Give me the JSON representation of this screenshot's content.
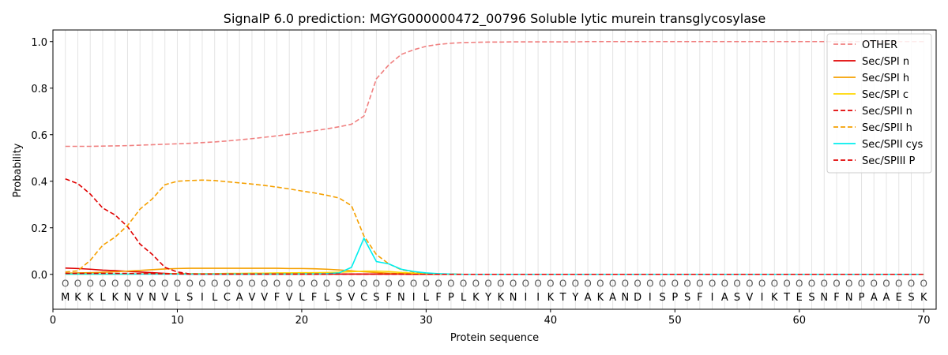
{
  "chart_data": {
    "type": "line",
    "title": "SignalP 6.0 prediction: MGYG000000472_00796 Soluble lytic murein transglycosylase",
    "xlabel": "Protein sequence",
    "ylabel": "Probability",
    "xlim": [
      0,
      71
    ],
    "ylim": [
      -0.15,
      1.05
    ],
    "xticks": [
      0,
      10,
      20,
      30,
      40,
      50,
      60,
      70
    ],
    "yticks": [
      0.0,
      0.2,
      0.4,
      0.6,
      0.8,
      1.0
    ],
    "ytick_labels": [
      "0.0",
      "0.2",
      "0.4",
      "0.6",
      "0.8",
      "1.0"
    ],
    "grid": "vertical lines at each residue",
    "legend_position": "top-right",
    "sequence": [
      "M",
      "K",
      "K",
      "L",
      "K",
      "N",
      "V",
      "N",
      "V",
      "L",
      "S",
      "I",
      "L",
      "C",
      "A",
      "V",
      "V",
      "F",
      "V",
      "L",
      "F",
      "L",
      "S",
      "V",
      "C",
      "S",
      "F",
      "N",
      "I",
      "L",
      "F",
      "P",
      "L",
      "K",
      "Y",
      "K",
      "N",
      "I",
      "I",
      "K",
      "T",
      "Y",
      "A",
      "K",
      "A",
      "N",
      "D",
      "I",
      "S",
      "P",
      "S",
      "F",
      "I",
      "A",
      "S",
      "V",
      "I",
      "K",
      "T",
      "E",
      "S",
      "N",
      "F",
      "N",
      "P",
      "A",
      "A",
      "E",
      "S",
      "K"
    ],
    "residue_state_label": "O",
    "x": [
      1,
      2,
      3,
      4,
      5,
      6,
      7,
      8,
      9,
      10,
      11,
      12,
      13,
      14,
      15,
      16,
      17,
      18,
      19,
      20,
      21,
      22,
      23,
      24,
      25,
      26,
      27,
      28,
      29,
      30,
      31,
      32,
      33,
      34,
      35,
      36,
      37,
      38,
      39,
      40,
      41,
      42,
      43,
      44,
      45,
      46,
      47,
      48,
      49,
      50,
      51,
      52,
      53,
      54,
      55,
      56,
      57,
      58,
      59,
      60,
      61,
      62,
      63,
      64,
      65,
      66,
      67,
      68,
      69,
      70
    ],
    "series": [
      {
        "name": "OTHER",
        "color": "#f08080",
        "dash": "dashed",
        "values": [
          0.55,
          0.55,
          0.55,
          0.551,
          0.552,
          0.553,
          0.555,
          0.557,
          0.559,
          0.561,
          0.563,
          0.566,
          0.569,
          0.573,
          0.578,
          0.583,
          0.589,
          0.595,
          0.602,
          0.609,
          0.617,
          0.625,
          0.634,
          0.645,
          0.68,
          0.84,
          0.9,
          0.945,
          0.965,
          0.98,
          0.988,
          0.993,
          0.996,
          0.997,
          0.998,
          0.998,
          0.999,
          0.999,
          0.999,
          0.999,
          0.999,
          0.999,
          1,
          1,
          1,
          1,
          1,
          1,
          1,
          1,
          1,
          1,
          1,
          1,
          1,
          1,
          1,
          1,
          1,
          1,
          1,
          1,
          1,
          1,
          1,
          1,
          1,
          1,
          1,
          1
        ]
      },
      {
        "name": "Sec/SPI n",
        "color": "#e00000",
        "dash": "solid",
        "values": [
          0.027,
          0.025,
          0.022,
          0.018,
          0.016,
          0.013,
          0.01,
          0.007,
          0.004,
          0.002,
          0.001,
          0.001,
          0.001,
          0.001,
          0.001,
          0.001,
          0.001,
          0.001,
          0.001,
          0.001,
          0.001,
          0.001,
          0.001,
          0.001,
          0.001,
          0.001,
          0.001,
          0.001,
          0,
          0,
          0,
          0,
          0,
          0,
          0,
          0,
          0,
          0,
          0,
          0,
          0,
          0,
          0,
          0,
          0,
          0,
          0,
          0,
          0,
          0,
          0,
          0,
          0,
          0,
          0,
          0,
          0,
          0,
          0,
          0,
          0,
          0,
          0,
          0,
          0,
          0,
          0,
          0,
          0,
          0
        ]
      },
      {
        "name": "Sec/SPI h",
        "color": "#f5a000",
        "dash": "solid",
        "values": [
          0.005,
          0.006,
          0.007,
          0.009,
          0.011,
          0.014,
          0.017,
          0.02,
          0.023,
          0.025,
          0.026,
          0.026,
          0.026,
          0.026,
          0.026,
          0.026,
          0.026,
          0.026,
          0.025,
          0.025,
          0.024,
          0.022,
          0.019,
          0.015,
          0.011,
          0.008,
          0.005,
          0.003,
          0.002,
          0.001,
          0.001,
          0,
          0,
          0,
          0,
          0,
          0,
          0,
          0,
          0,
          0,
          0,
          0,
          0,
          0,
          0,
          0,
          0,
          0,
          0,
          0,
          0,
          0,
          0,
          0,
          0,
          0,
          0,
          0,
          0,
          0,
          0,
          0,
          0,
          0,
          0,
          0,
          0,
          0,
          0
        ]
      },
      {
        "name": "Sec/SPI c",
        "color": "#ffd700",
        "dash": "solid",
        "values": [
          0.001,
          0.001,
          0.001,
          0.001,
          0.001,
          0.001,
          0.002,
          0.002,
          0.002,
          0.003,
          0.003,
          0.003,
          0.003,
          0.004,
          0.004,
          0.005,
          0.005,
          0.006,
          0.006,
          0.007,
          0.007,
          0.008,
          0.009,
          0.011,
          0.014,
          0.014,
          0.012,
          0.008,
          0.005,
          0.003,
          0.001,
          0.001,
          0,
          0,
          0,
          0,
          0,
          0,
          0,
          0,
          0,
          0,
          0,
          0,
          0,
          0,
          0,
          0,
          0,
          0,
          0,
          0,
          0,
          0,
          0,
          0,
          0,
          0,
          0,
          0,
          0,
          0,
          0,
          0,
          0,
          0,
          0,
          0,
          0,
          0
        ]
      },
      {
        "name": "Sec/SPII n",
        "color": "#e00000",
        "dash": "dashed",
        "values": [
          0.41,
          0.39,
          0.345,
          0.285,
          0.255,
          0.205,
          0.13,
          0.085,
          0.03,
          0.01,
          0.002,
          0.001,
          0.001,
          0.001,
          0.001,
          0.001,
          0.001,
          0.001,
          0.001,
          0.001,
          0.001,
          0.001,
          0.001,
          0.001,
          0.001,
          0.001,
          0.001,
          0.001,
          0,
          0,
          0,
          0,
          0,
          0,
          0,
          0,
          0,
          0,
          0,
          0,
          0,
          0,
          0,
          0,
          0,
          0,
          0,
          0,
          0,
          0,
          0,
          0,
          0,
          0,
          0,
          0,
          0,
          0,
          0,
          0,
          0,
          0,
          0,
          0,
          0,
          0,
          0,
          0,
          0,
          0
        ]
      },
      {
        "name": "Sec/SPII h",
        "color": "#f5a000",
        "dash": "dashed",
        "values": [
          0.01,
          0.015,
          0.06,
          0.125,
          0.16,
          0.21,
          0.28,
          0.325,
          0.385,
          0.4,
          0.403,
          0.405,
          0.403,
          0.398,
          0.393,
          0.388,
          0.382,
          0.375,
          0.367,
          0.358,
          0.35,
          0.34,
          0.328,
          0.295,
          0.165,
          0.085,
          0.045,
          0.02,
          0.01,
          0.004,
          0.002,
          0.001,
          0,
          0,
          0,
          0,
          0,
          0,
          0,
          0,
          0,
          0,
          0,
          0,
          0,
          0,
          0,
          0,
          0,
          0,
          0,
          0,
          0,
          0,
          0,
          0,
          0,
          0,
          0,
          0,
          0,
          0,
          0,
          0,
          0,
          0,
          0,
          0,
          0,
          0
        ]
      },
      {
        "name": "Sec/SPII cys",
        "color": "#00eeee",
        "dash": "solid",
        "values": [
          0.001,
          0.001,
          0.001,
          0.001,
          0.001,
          0.001,
          0.001,
          0.001,
          0.001,
          0.001,
          0.001,
          0.001,
          0.001,
          0.001,
          0.001,
          0.001,
          0.001,
          0.001,
          0.001,
          0.002,
          0.002,
          0.003,
          0.006,
          0.03,
          0.155,
          0.055,
          0.045,
          0.022,
          0.012,
          0.006,
          0.003,
          0.001,
          0,
          0,
          0,
          0,
          0,
          0,
          0,
          0,
          0,
          0,
          0,
          0,
          0,
          0,
          0,
          0,
          0,
          0,
          0,
          0,
          0,
          0,
          0,
          0,
          0,
          0,
          0,
          0,
          0,
          0,
          0,
          0,
          0,
          0,
          0,
          0,
          0,
          0
        ]
      },
      {
        "name": "Sec/SPIII P",
        "color": "#e00000",
        "dash": "dashed",
        "values": [
          0.004,
          0.004,
          0.004,
          0.004,
          0.004,
          0.004,
          0.003,
          0.003,
          0.002,
          0.002,
          0.001,
          0.001,
          0.001,
          0.001,
          0.001,
          0.001,
          0.001,
          0.001,
          0.001,
          0.001,
          0.001,
          0.001,
          0.001,
          0.001,
          0.001,
          0.001,
          0.001,
          0.001,
          0,
          0,
          0,
          0,
          0,
          0,
          0,
          0,
          0,
          0,
          0,
          0,
          0,
          0,
          0,
          0,
          0,
          0,
          0,
          0,
          0,
          0,
          0,
          0,
          0,
          0,
          0,
          0,
          0,
          0,
          0,
          0,
          0,
          0,
          0,
          0,
          0,
          0,
          0,
          0,
          0,
          0
        ]
      }
    ]
  }
}
